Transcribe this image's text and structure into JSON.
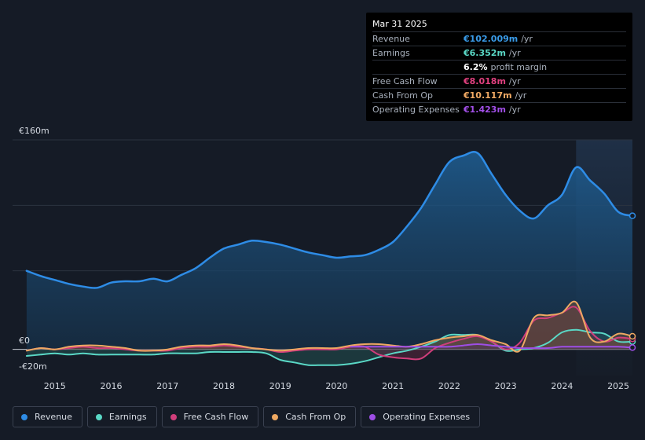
{
  "tooltip": {
    "date": "Mar 31 2025",
    "rows": [
      {
        "label": "Revenue",
        "value": "€102.009m",
        "unit": "/yr",
        "color": "#3a9be8"
      },
      {
        "label": "Earnings",
        "value": "€6.352m",
        "unit": "/yr",
        "color": "#5ad8c6"
      },
      {
        "label": "",
        "value": "6.2%",
        "unit": "profit margin",
        "color": "#ffffff"
      },
      {
        "label": "Free Cash Flow",
        "value": "€8.018m",
        "unit": "/yr",
        "color": "#e0407f"
      },
      {
        "label": "Cash From Op",
        "value": "€10.117m",
        "unit": "/yr",
        "color": "#f2aa64"
      },
      {
        "label": "Operating Expenses",
        "value": "€1.423m",
        "unit": "/yr",
        "color": "#a24fe8"
      }
    ]
  },
  "legend": [
    {
      "label": "Revenue",
      "color": "#2e8ce6"
    },
    {
      "label": "Earnings",
      "color": "#5ad8c6"
    },
    {
      "label": "Free Cash Flow",
      "color": "#d03e7b"
    },
    {
      "label": "Cash From Op",
      "color": "#eea862"
    },
    {
      "label": "Operating Expenses",
      "color": "#9e4ee6"
    }
  ],
  "chart_data": {
    "type": "area",
    "title": "",
    "xlabel": "",
    "ylabel": "",
    "ylim": [
      -20,
      160
    ],
    "y_tick_labels": [
      "€160m",
      "€0",
      "-€20m"
    ],
    "y_ticks": [
      160,
      0,
      -20
    ],
    "x_ticks": [
      2015,
      2016,
      2017,
      2018,
      2019,
      2020,
      2021,
      2022,
      2023,
      2024,
      2025
    ],
    "x_tick_labels": [
      "2015",
      "2016",
      "2017",
      "2018",
      "2019",
      "2020",
      "2021",
      "2022",
      "2023",
      "2024",
      "2025"
    ],
    "xlim": [
      2014.25,
      2025.25
    ],
    "highlight_from": 2024.25,
    "series": [
      {
        "name": "Revenue",
        "color": "#2e8ce6",
        "x": [
          2014.5,
          2014.75,
          2015.0,
          2015.25,
          2015.5,
          2015.75,
          2016.0,
          2016.25,
          2016.5,
          2016.75,
          2017.0,
          2017.25,
          2017.5,
          2017.75,
          2018.0,
          2018.25,
          2018.5,
          2018.75,
          2019.0,
          2019.25,
          2019.5,
          2019.75,
          2020.0,
          2020.25,
          2020.5,
          2020.75,
          2021.0,
          2021.25,
          2021.5,
          2021.75,
          2022.0,
          2022.25,
          2022.5,
          2022.75,
          2023.0,
          2023.25,
          2023.5,
          2023.75,
          2024.0,
          2024.25,
          2024.5,
          2024.75,
          2025.0,
          2025.25
        ],
        "values": [
          60,
          56,
          53,
          50,
          48,
          47,
          51,
          52,
          52,
          54,
          52,
          57,
          62,
          70,
          77,
          80,
          83,
          82,
          80,
          77,
          74,
          72,
          70,
          71,
          72,
          76,
          82,
          94,
          108,
          126,
          143,
          148,
          150,
          134,
          118,
          106,
          100,
          110,
          118,
          139,
          129,
          119,
          105,
          102
        ]
      },
      {
        "name": "Earnings",
        "color": "#5ad8c6",
        "x": [
          2014.5,
          2014.75,
          2015.0,
          2015.25,
          2015.5,
          2015.75,
          2016.0,
          2016.25,
          2016.5,
          2016.75,
          2017.0,
          2017.25,
          2017.5,
          2017.75,
          2018.0,
          2018.25,
          2018.5,
          2018.75,
          2019.0,
          2019.25,
          2019.5,
          2019.75,
          2020.0,
          2020.25,
          2020.5,
          2020.75,
          2021.0,
          2021.25,
          2021.5,
          2021.75,
          2022.0,
          2022.25,
          2022.5,
          2022.75,
          2023.0,
          2023.25,
          2023.5,
          2023.75,
          2024.0,
          2024.25,
          2024.5,
          2024.75,
          2025.0,
          2025.25
        ],
        "values": [
          -5,
          -4,
          -3,
          -4,
          -3,
          -4,
          -4,
          -4,
          -4,
          -4,
          -3,
          -3,
          -3,
          -2,
          -2,
          -2,
          -2,
          -3,
          -8,
          -10,
          -12,
          -12,
          -12,
          -11,
          -9,
          -6,
          -3,
          -1,
          2,
          6,
          11,
          11,
          11,
          6,
          -1,
          0,
          1,
          5,
          13,
          15,
          13,
          12,
          6,
          6
        ]
      },
      {
        "name": "Free Cash Flow",
        "color": "#d03e7b",
        "x": [
          2014.5,
          2014.75,
          2015.0,
          2015.25,
          2015.5,
          2015.75,
          2016.0,
          2016.25,
          2016.5,
          2016.75,
          2017.0,
          2017.25,
          2017.5,
          2017.75,
          2018.0,
          2018.25,
          2018.5,
          2018.75,
          2019.0,
          2019.25,
          2019.5,
          2019.75,
          2020.0,
          2020.25,
          2020.5,
          2020.75,
          2021.0,
          2021.25,
          2021.5,
          2021.75,
          2022.0,
          2022.25,
          2022.5,
          2022.75,
          2023.0,
          2023.25,
          2023.5,
          2023.75,
          2024.0,
          2024.25,
          2024.5,
          2024.75,
          2025.0,
          2025.25
        ],
        "values": [
          -1,
          1,
          0,
          1,
          2,
          1,
          1,
          0,
          -1,
          -1,
          -1,
          1,
          2,
          2,
          3,
          2,
          1,
          0,
          -2,
          -1,
          0,
          0,
          0,
          2,
          2,
          -4,
          -6,
          -7,
          -7,
          1,
          5,
          8,
          10,
          6,
          0,
          5,
          22,
          24,
          28,
          32,
          14,
          6,
          9,
          8
        ]
      },
      {
        "name": "Cash From Op",
        "color": "#eea862",
        "x": [
          2014.5,
          2014.75,
          2015.0,
          2015.25,
          2015.5,
          2015.75,
          2016.0,
          2016.25,
          2016.5,
          2016.75,
          2017.0,
          2017.25,
          2017.5,
          2017.75,
          2018.0,
          2018.25,
          2018.5,
          2018.75,
          2019.0,
          2019.25,
          2019.5,
          2019.75,
          2020.0,
          2020.25,
          2020.5,
          2020.75,
          2021.0,
          2021.25,
          2021.5,
          2021.75,
          2022.0,
          2022.25,
          2022.5,
          2022.75,
          2023.0,
          2023.25,
          2023.5,
          2023.75,
          2024.0,
          2024.25,
          2024.5,
          2024.75,
          2025.0,
          2025.25
        ],
        "values": [
          -1,
          1,
          0,
          2,
          3,
          3,
          2,
          1,
          -1,
          -1,
          0,
          2,
          3,
          3,
          4,
          3,
          1,
          0,
          -1,
          0,
          1,
          1,
          1,
          3,
          4,
          4,
          3,
          2,
          4,
          7,
          9,
          10,
          11,
          7,
          4,
          -1,
          24,
          26,
          28,
          36,
          9,
          6,
          12,
          10
        ]
      },
      {
        "name": "Operating Expenses",
        "color": "#9e4ee6",
        "x": [
          2020.25,
          2020.5,
          2020.75,
          2021.0,
          2021.25,
          2021.5,
          2021.75,
          2022.0,
          2022.25,
          2022.5,
          2022.75,
          2023.0,
          2023.25,
          2023.5,
          2023.75,
          2024.0,
          2024.25,
          2024.5,
          2024.75,
          2025.0,
          2025.25
        ],
        "values": [
          2,
          2,
          2,
          2,
          2,
          2,
          2,
          2,
          3,
          4,
          3,
          2,
          1,
          1,
          1,
          2,
          2,
          2,
          2,
          2,
          1.4
        ]
      }
    ]
  }
}
